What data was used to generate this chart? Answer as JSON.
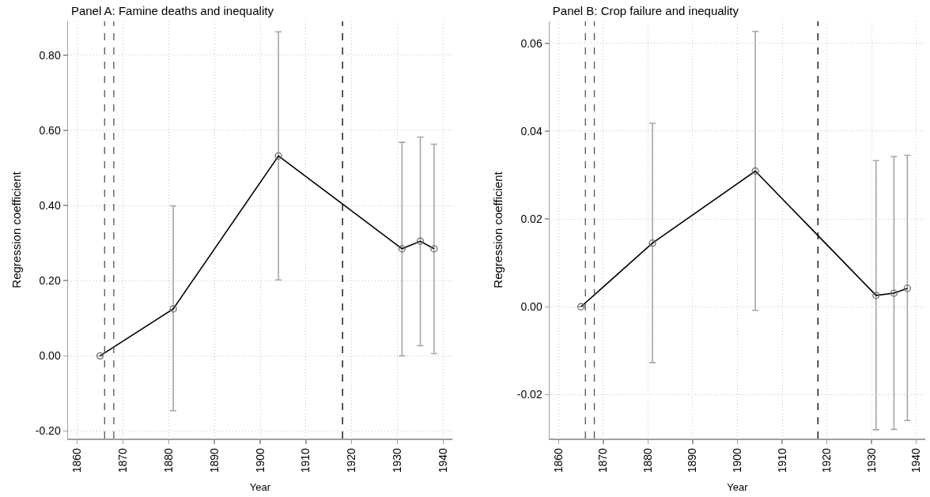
{
  "chart_data": [
    {
      "type": "line",
      "title": "Panel A: Famine deaths and inequality",
      "xlabel": "Year",
      "ylabel": "Regression coefficient",
      "x": [
        1865,
        1881,
        1904,
        1931,
        1935,
        1938
      ],
      "values": [
        0,
        0.125,
        0.532,
        0.285,
        0.305,
        0.285
      ],
      "errors": [
        null,
        [
          -0.146,
          0.399
        ],
        [
          0.202,
          0.862
        ],
        [
          0.0,
          0.568
        ],
        [
          0.027,
          0.582
        ],
        [
          0.006,
          0.563
        ]
      ],
      "color": "#000000",
      "marker": "circle",
      "xlim": [
        1858,
        1942
      ],
      "xticks": [
        1860,
        1870,
        1880,
        1890,
        1900,
        1910,
        1920,
        1930,
        1940
      ],
      "ylim": [
        -0.22,
        0.89
      ],
      "yticks": [
        {
          "value": -0.2,
          "label": "-0.20"
        },
        {
          "value": 0,
          "label": "0.00"
        },
        {
          "value": 0.2,
          "label": "0.20"
        },
        {
          "value": 0.4,
          "label": "0.40"
        },
        {
          "value": 0.6,
          "label": "0.60"
        },
        {
          "value": 0.8,
          "label": "0.80"
        }
      ],
      "ref_lines": [
        {
          "axis": "x",
          "value": 1866,
          "color": "#555555",
          "line_style": "dashed"
        },
        {
          "axis": "x",
          "value": 1868,
          "color": "#555555",
          "line_style": "dashed"
        },
        {
          "axis": "x",
          "value": 1918,
          "color": "#000000",
          "line_style": "dashed"
        }
      ],
      "grid": true
    },
    {
      "type": "line",
      "title": "Panel B: Crop failure and inequality",
      "xlabel": "Year",
      "ylabel": "Regression coefficient",
      "x": [
        1865,
        1881,
        1904,
        1931,
        1935,
        1938
      ],
      "values": [
        0,
        0.0145,
        0.0309,
        0.0026,
        0.0031,
        0.0042
      ],
      "errors": [
        null,
        [
          -0.0127,
          0.0418
        ],
        [
          -0.0008,
          0.0627
        ],
        [
          -0.028,
          0.0333
        ],
        [
          -0.0279,
          0.0342
        ],
        [
          -0.0259,
          0.0345
        ]
      ],
      "color": "#000000",
      "marker": "circle",
      "xlim": [
        1858,
        1942
      ],
      "xticks": [
        1860,
        1870,
        1880,
        1890,
        1900,
        1910,
        1920,
        1930,
        1940
      ],
      "ylim": [
        -0.03,
        0.065
      ],
      "yticks": [
        -0.02,
        {
          "value": 0,
          "label": "0.00"
        },
        0.02,
        0.04,
        0.06
      ],
      "ref_lines": [
        {
          "axis": "x",
          "value": 1866,
          "color": "#555555",
          "line_style": "dashed"
        },
        {
          "axis": "x",
          "value": 1868,
          "color": "#555555",
          "line_style": "dashed"
        },
        {
          "axis": "x",
          "value": 1918,
          "color": "#000000",
          "line_style": "dashed"
        }
      ],
      "grid": true
    }
  ]
}
